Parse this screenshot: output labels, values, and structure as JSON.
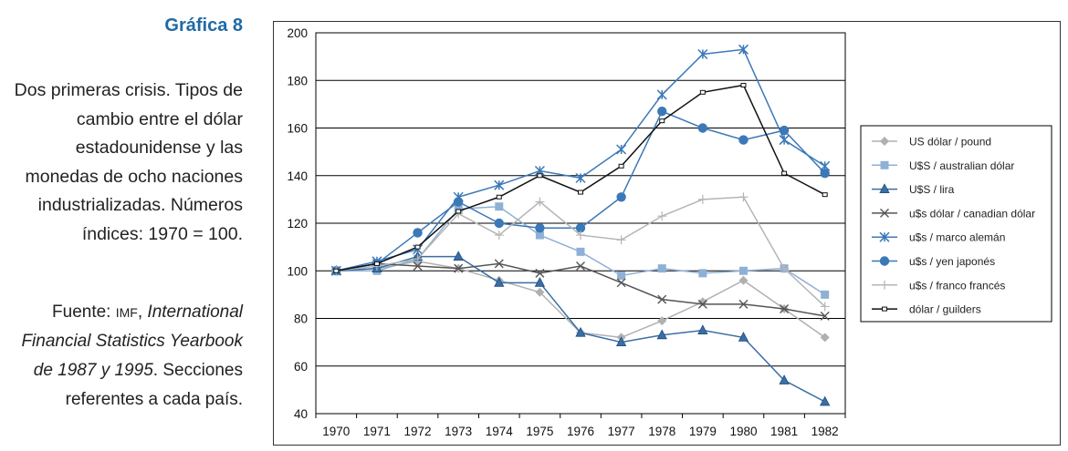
{
  "figure": {
    "label": "Gráfica 8",
    "caption": "Dos primeras crisis. Tipos de cambio entre el dólar estadounidense y las monedas de ocho naciones industrializadas. Números índices: 1970 = 100.",
    "source_prefix": "Fuente: ",
    "source_org": "IMF",
    "source_comma": ", ",
    "source_title": "International Financial Statistics Yearbook de 1987 y 1995",
    "source_suffix": ". Secciones referentes a cada país."
  },
  "chart_data": {
    "type": "line",
    "title": "",
    "xlabel": "",
    "ylabel": "",
    "categories": [
      "1970",
      "1971",
      "1972",
      "1973",
      "1974",
      "1975",
      "1976",
      "1977",
      "1978",
      "1979",
      "1980",
      "1981",
      "1982"
    ],
    "ylim": [
      40,
      200
    ],
    "yticks": [
      40,
      60,
      80,
      100,
      120,
      140,
      160,
      180,
      200
    ],
    "grid": "horizontal",
    "legend_position": "right",
    "series": [
      {
        "name": "US dólar / pound",
        "color": "#b0b0b0",
        "marker": "diamond",
        "values": [
          100,
          101,
          104,
          101,
          96,
          91,
          74,
          72,
          79,
          87,
          96,
          84,
          72
        ]
      },
      {
        "name": "U$S / australian dólar",
        "color": "#8fb0d6",
        "marker": "square",
        "values": [
          100,
          100,
          105,
          126,
          127,
          115,
          108,
          98,
          101,
          99,
          100,
          101,
          90
        ]
      },
      {
        "name": "U$S / lira",
        "color": "#3a6ea5",
        "marker": "triangle",
        "values": [
          100,
          101,
          106,
          106,
          95,
          95,
          74,
          70,
          73,
          75,
          72,
          54,
          45
        ]
      },
      {
        "name": "u$s dólar / canadian dólar",
        "color": "#555555",
        "marker": "x",
        "values": [
          100,
          103,
          102,
          101,
          103,
          99,
          102,
          95,
          88,
          86,
          86,
          84,
          81
        ]
      },
      {
        "name": "u$s / marco alemán",
        "color": "#3b78b8",
        "marker": "star",
        "values": [
          100,
          104,
          109,
          131,
          136,
          142,
          139,
          151,
          174,
          191,
          193,
          155,
          144
        ]
      },
      {
        "name": "u$s / yen japonés",
        "color": "#3b78b8",
        "marker": "circle",
        "values": [
          100,
          103,
          116,
          129,
          120,
          118,
          118,
          131,
          167,
          160,
          155,
          159,
          141
        ]
      },
      {
        "name": "u$s / franco francés",
        "color": "#b5b5b5",
        "marker": "plus",
        "values": [
          100,
          102,
          105,
          124,
          115,
          129,
          115,
          113,
          123,
          130,
          131,
          101,
          85
        ]
      },
      {
        "name": "dólar / guilders",
        "color": "#111111",
        "marker": "dash",
        "values": [
          100,
          103,
          110,
          125,
          131,
          140,
          133,
          144,
          163,
          175,
          178,
          141,
          132
        ]
      }
    ]
  }
}
